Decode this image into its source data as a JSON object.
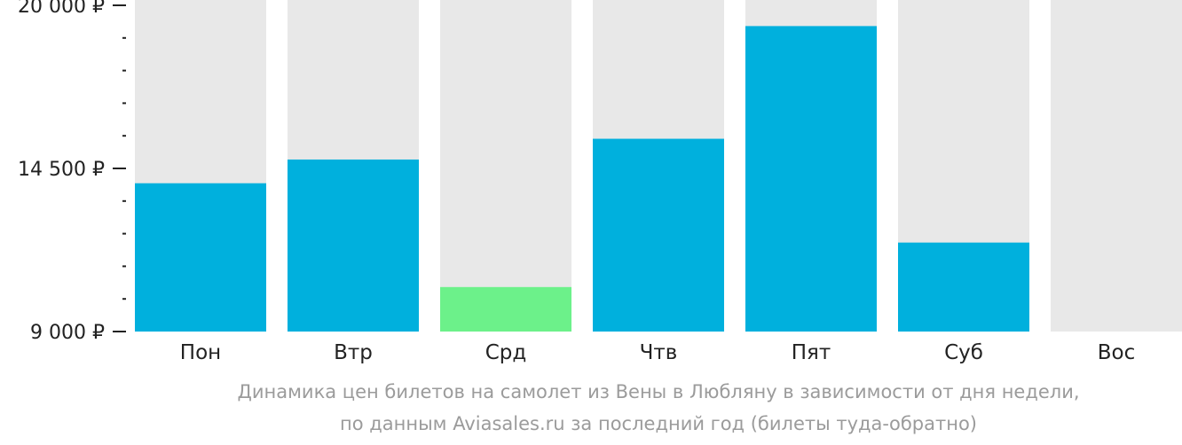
{
  "chart_data": {
    "type": "bar",
    "categories": [
      "Пон",
      "Втр",
      "Срд",
      "Чтв",
      "Пят",
      "Суб",
      "Вос"
    ],
    "values": [
      14000,
      14800,
      10500,
      15500,
      19300,
      12000,
      null
    ],
    "ylim": [
      9000,
      20000
    ],
    "yticks_major": [
      {
        "value": 20000,
        "label": "20 000 ₽"
      },
      {
        "value": 14500,
        "label": "14 500 ₽"
      },
      {
        "value": 9000,
        "label": "9 000 ₽"
      }
    ],
    "title": "Динамика цен билетов на самолет из Вены в Любляну в зависимости от дня недели,",
    "subtitle": "по данным Aviasales.ru за последний год (билеты туда-обратно)",
    "grid": false,
    "legend": "none"
  },
  "colors": {
    "bar": "#00b0dd",
    "bar_min": "#6cf18a",
    "bar_background": "#e8e8e8",
    "axis": "#222222"
  }
}
